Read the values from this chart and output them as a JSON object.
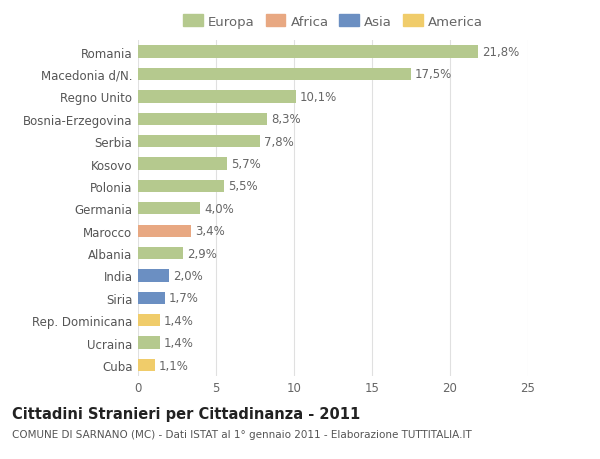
{
  "categories": [
    "Romania",
    "Macedonia d/N.",
    "Regno Unito",
    "Bosnia-Erzegovina",
    "Serbia",
    "Kosovo",
    "Polonia",
    "Germania",
    "Marocco",
    "Albania",
    "India",
    "Siria",
    "Rep. Dominicana",
    "Ucraina",
    "Cuba"
  ],
  "values": [
    21.8,
    17.5,
    10.1,
    8.3,
    7.8,
    5.7,
    5.5,
    4.0,
    3.4,
    2.9,
    2.0,
    1.7,
    1.4,
    1.4,
    1.1
  ],
  "labels": [
    "21,8%",
    "17,5%",
    "10,1%",
    "8,3%",
    "7,8%",
    "5,7%",
    "5,5%",
    "4,0%",
    "3,4%",
    "2,9%",
    "2,0%",
    "1,7%",
    "1,4%",
    "1,4%",
    "1,1%"
  ],
  "continent": [
    "Europa",
    "Europa",
    "Europa",
    "Europa",
    "Europa",
    "Europa",
    "Europa",
    "Europa",
    "Africa",
    "Europa",
    "Asia",
    "Asia",
    "America",
    "Europa",
    "America"
  ],
  "colors": {
    "Europa": "#b5c98e",
    "Africa": "#e8a882",
    "Asia": "#6b8fc2",
    "America": "#f0cc6a"
  },
  "legend_order": [
    "Europa",
    "Africa",
    "Asia",
    "America"
  ],
  "title": "Cittadini Stranieri per Cittadinanza - 2011",
  "subtitle": "COMUNE DI SARNANO (MC) - Dati ISTAT al 1° gennaio 2011 - Elaborazione TUTTITALIA.IT",
  "xlim": [
    0,
    25
  ],
  "xticks": [
    0,
    5,
    10,
    15,
    20,
    25
  ],
  "background_color": "#ffffff",
  "grid_color": "#e0e0e0",
  "bar_height": 0.55,
  "label_fontsize": 8.5,
  "title_fontsize": 10.5,
  "subtitle_fontsize": 7.5,
  "tick_fontsize": 8.5,
  "legend_fontsize": 9.5
}
